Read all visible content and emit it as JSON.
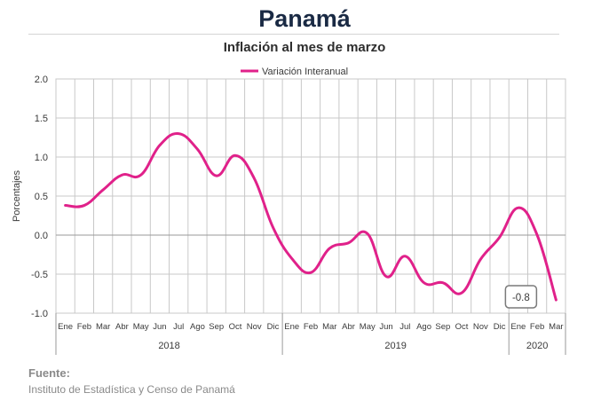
{
  "header": {
    "title": "Panamá",
    "subtitle": "Inflación al mes de marzo"
  },
  "source": {
    "label": "Fuente:",
    "text": "Instituto de Estadística y Censo de Panamá"
  },
  "colors": {
    "series": "#e0218a",
    "grid": "#c8c8c8",
    "zero_line": "#9a9a9a",
    "text": "#3a3a3a"
  },
  "chart_data": {
    "type": "line",
    "title": "Inflación al mes de marzo",
    "ylabel": "Porcentajes",
    "ylim": [
      -1.0,
      2.0
    ],
    "yticks": [
      "2.0",
      "1.5",
      "1.0",
      "0.5",
      "0.0",
      "-0.5",
      "-1.0"
    ],
    "legend_position": "top-center",
    "grid": true,
    "categories": [
      "Ene",
      "Feb",
      "Mar",
      "Abr",
      "May",
      "Jun",
      "Jul",
      "Ago",
      "Sep",
      "Oct",
      "Nov",
      "Dic",
      "Ene",
      "Feb",
      "Mar",
      "Abr",
      "May",
      "Jun",
      "Jul",
      "Ago",
      "Sep",
      "Oct",
      "Nov",
      "Dic",
      "Ene",
      "Feb",
      "Mar"
    ],
    "year_groups": [
      {
        "label": "2018",
        "count": 12
      },
      {
        "label": "2019",
        "count": 12
      },
      {
        "label": "2020",
        "count": 3
      }
    ],
    "series": [
      {
        "name": "Variación Interanual",
        "values": [
          0.38,
          0.38,
          0.58,
          0.77,
          0.77,
          1.15,
          1.3,
          1.1,
          0.76,
          1.02,
          0.73,
          0.1,
          -0.3,
          -0.48,
          -0.17,
          -0.1,
          0.02,
          -0.53,
          -0.27,
          -0.61,
          -0.61,
          -0.74,
          -0.31,
          -0.03,
          0.35,
          0.0,
          -0.83
        ]
      }
    ],
    "annotation": {
      "label": "-0.8",
      "index": 26
    }
  }
}
